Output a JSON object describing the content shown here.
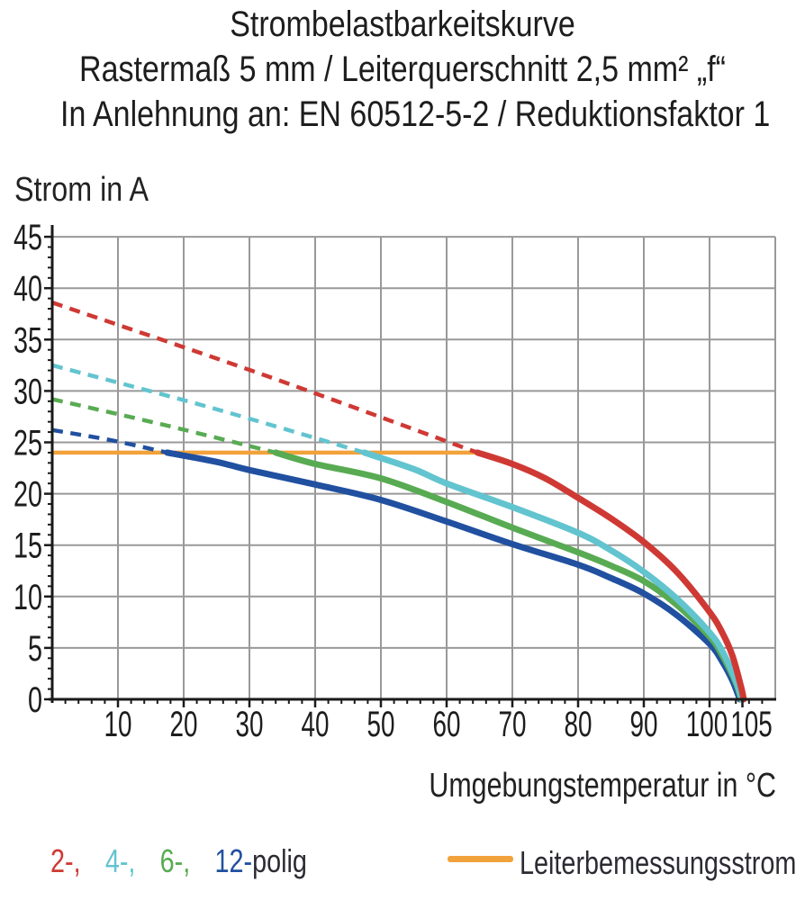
{
  "title": {
    "line1": "Strombelastbarkeitskurve",
    "line2": "Rastermaß 5 mm / Leiterquerschnitt 2,5 mm² „f“",
    "line3": "In Anlehnung an: EN 60512-5-2 / Reduktionsfaktor 1"
  },
  "axes": {
    "y_title": "Strom in A",
    "x_title": "Umgebungstemperatur in °C",
    "y_ticks": [
      0,
      5,
      10,
      15,
      20,
      25,
      30,
      35,
      40,
      45
    ],
    "x_ticks": [
      10,
      20,
      30,
      40,
      50,
      60,
      70,
      80,
      90,
      100,
      105
    ],
    "y_minor_step": 1,
    "x_minor_step": 2
  },
  "colors": {
    "red": "#cf3934",
    "cyan": "#62c4cf",
    "green": "#58ab52",
    "blue": "#2150a0",
    "orange": "#f2a23b",
    "grid": "#999999",
    "axis": "#1a1a1a",
    "text": "#1d1d1d"
  },
  "legend": {
    "pole_items": [
      {
        "label": "2-,",
        "color": "#cf3934"
      },
      {
        "label": "4-,",
        "color": "#62c4cf"
      },
      {
        "label": "6-,",
        "color": "#58ab52"
      },
      {
        "label": "12-",
        "color": "#2150a0"
      }
    ],
    "suffix": "polig",
    "reference_label": "Leiterbemessungsstrom",
    "reference_color": "#f2a23b"
  },
  "chart_data": {
    "type": "line",
    "title": "Strombelastbarkeitskurve",
    "xlabel": "Umgebungstemperatur in °C",
    "ylabel": "Strom in A",
    "xlim": [
      0,
      110
    ],
    "ylim": [
      0,
      45
    ],
    "grid": true,
    "x_major_step": 10,
    "y_major_step": 5,
    "reference_line": {
      "label": "Leiterbemessungsstrom",
      "y": 24,
      "x_start": 0,
      "x_end": 64.7,
      "color": "#f2a23b"
    },
    "series": [
      {
        "name": "2-polig",
        "color": "#cf3934",
        "dashed": [
          [
            0,
            38.6
          ],
          [
            32,
            31.6
          ],
          [
            64.7,
            24
          ]
        ],
        "solid": [
          [
            64.7,
            24
          ],
          [
            70,
            22.9
          ],
          [
            75,
            21.5
          ],
          [
            80,
            19.6
          ],
          [
            85,
            17.6
          ],
          [
            90,
            15.3
          ],
          [
            95,
            12.4
          ],
          [
            100,
            8.5
          ],
          [
            102,
            6.4
          ],
          [
            103.5,
            4.2
          ],
          [
            104.8,
            1.2
          ],
          [
            105.2,
            0
          ]
        ]
      },
      {
        "name": "4-polig",
        "color": "#62c4cf",
        "dashed": [
          [
            0,
            32.5
          ],
          [
            24,
            28.4
          ],
          [
            47.5,
            24
          ]
        ],
        "solid": [
          [
            47.5,
            24
          ],
          [
            55,
            22.4
          ],
          [
            60,
            21.0
          ],
          [
            70,
            18.7
          ],
          [
            80,
            16.2
          ],
          [
            85,
            14.5
          ],
          [
            90,
            12.4
          ],
          [
            95,
            9.8
          ],
          [
            100,
            6.5
          ],
          [
            102,
            4.6
          ],
          [
            104,
            1.8
          ],
          [
            104.9,
            0
          ]
        ]
      },
      {
        "name": "6-polig",
        "color": "#58ab52",
        "dashed": [
          [
            0,
            29.2
          ],
          [
            17,
            26.7
          ],
          [
            34,
            24
          ]
        ],
        "solid": [
          [
            34,
            24
          ],
          [
            40,
            22.9
          ],
          [
            50,
            21.5
          ],
          [
            60,
            19.2
          ],
          [
            70,
            16.7
          ],
          [
            80,
            14.3
          ],
          [
            85,
            13.0
          ],
          [
            90,
            11.5
          ],
          [
            95,
            9.2
          ],
          [
            100,
            6.1
          ],
          [
            102,
            4.2
          ],
          [
            104,
            1.6
          ],
          [
            104.8,
            0
          ]
        ]
      },
      {
        "name": "12-polig",
        "color": "#2150a0",
        "dashed": [
          [
            0,
            26.2
          ],
          [
            9,
            25.2
          ],
          [
            17.5,
            24
          ]
        ],
        "solid": [
          [
            17.5,
            24
          ],
          [
            25,
            23.1
          ],
          [
            30,
            22.3
          ],
          [
            40,
            20.9
          ],
          [
            50,
            19.4
          ],
          [
            60,
            17.3
          ],
          [
            70,
            15.1
          ],
          [
            80,
            13.1
          ],
          [
            85,
            11.8
          ],
          [
            90,
            10.3
          ],
          [
            95,
            8.2
          ],
          [
            100,
            5.4
          ],
          [
            102,
            3.6
          ],
          [
            103.5,
            1.8
          ],
          [
            104.6,
            0
          ]
        ]
      }
    ]
  }
}
